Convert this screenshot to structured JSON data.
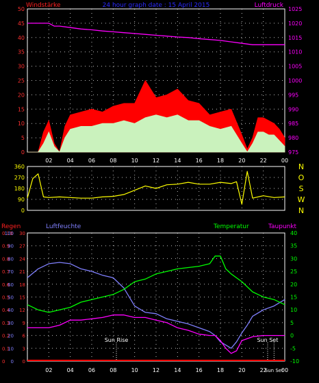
{
  "chart_data": [
    {
      "type": "line",
      "title": "24 hour graph date : 15 April 2015",
      "left_label": "Windstärke",
      "right_label": "Luftdruck",
      "y_ticks": [
        "0",
        "5",
        "10",
        "15",
        "20",
        "25",
        "30",
        "35",
        "40",
        "45",
        "50"
      ],
      "y_ticks_right": [
        "975",
        "980",
        "985",
        "990",
        "995",
        "1000",
        "1005",
        "1010",
        "1015",
        "1020",
        "1025"
      ],
      "x_ticks": [
        "02",
        "04",
        "06",
        "08",
        "10",
        "12",
        "14",
        "16",
        "18",
        "20",
        "22",
        "00"
      ],
      "ylim": [
        0,
        50
      ],
      "ylim_right": [
        975,
        1025
      ],
      "grid": true,
      "series": [
        {
          "color": "#ff0000",
          "x": [
            0,
            1,
            1.5,
            2,
            2.5,
            3,
            3.5,
            4,
            5,
            6,
            7,
            8,
            9,
            10,
            11,
            12,
            13,
            14,
            15,
            16,
            17,
            18,
            19,
            20,
            20.5,
            21,
            21.5,
            22,
            22.5,
            23,
            23.5,
            24
          ],
          "values": [
            0,
            0,
            7,
            11,
            3,
            0,
            9,
            13,
            14,
            15,
            14,
            16,
            17,
            17,
            25,
            19,
            20,
            22,
            18,
            17,
            13,
            14,
            15,
            6,
            1,
            5,
            12,
            12,
            11,
            10,
            8,
            5
          ]
        },
        {
          "color": "#c8ffc8",
          "x": [
            0,
            1,
            1.5,
            2,
            2.5,
            3,
            3.5,
            4,
            5,
            6,
            7,
            8,
            9,
            10,
            11,
            12,
            13,
            14,
            15,
            16,
            17,
            18,
            19,
            20,
            20.5,
            21,
            21.5,
            22,
            22.5,
            23,
            23.5,
            24
          ],
          "values": [
            0,
            0,
            3,
            7,
            2,
            0,
            5,
            8,
            9,
            9,
            10,
            10,
            11,
            10,
            12,
            13,
            12,
            13,
            11,
            11,
            9,
            8,
            9,
            3,
            0,
            3,
            7,
            7,
            6,
            6,
            4,
            2
          ]
        },
        {
          "color": "#ff00ff",
          "axis": "right",
          "x": [
            0,
            2,
            2.5,
            3,
            4,
            5,
            6,
            7,
            8,
            9,
            10,
            11,
            12,
            13,
            14,
            15,
            16,
            17,
            18,
            19,
            20,
            21,
            22,
            23,
            24
          ],
          "values": [
            1020,
            1020,
            1019,
            1019,
            1018.5,
            1018,
            1017.7,
            1017.3,
            1017,
            1016.7,
            1016.4,
            1016.1,
            1015.8,
            1015.5,
            1015.2,
            1015,
            1014.6,
            1014.3,
            1014,
            1013.5,
            1013,
            1012.5,
            1012.5,
            1012.5,
            1012.5
          ]
        }
      ]
    },
    {
      "type": "line",
      "left_ticks": [
        "0",
        "90",
        "180",
        "270",
        "360"
      ],
      "right_labels": [
        "N",
        "W",
        "S",
        "O",
        "N"
      ],
      "ylim": [
        0,
        360
      ],
      "grid": true,
      "series": [
        {
          "color": "#ffff00",
          "x": [
            0,
            0.5,
            1,
            1.5,
            2,
            3,
            4,
            5,
            6,
            7,
            8,
            9,
            10,
            11,
            12,
            13,
            14,
            15,
            16,
            17,
            18,
            19,
            19.5,
            20,
            20.5,
            21,
            22,
            23,
            24
          ],
          "values": [
            100,
            260,
            300,
            110,
            105,
            110,
            105,
            100,
            100,
            110,
            115,
            130,
            165,
            200,
            180,
            210,
            215,
            230,
            215,
            215,
            230,
            220,
            235,
            50,
            320,
            100,
            120,
            105,
            110
          ]
        }
      ]
    },
    {
      "type": "line",
      "labels": {
        "rain": "Regen",
        "humidity": "Luftfeuchte",
        "temperature": "Temperatur",
        "dewpoint": "Taupunkt"
      },
      "rain_ticks": [
        "0",
        "0.1",
        "0.2",
        "0.3",
        "0.4",
        "0.5",
        "0.6",
        "0.7",
        "0.8",
        "0.9",
        "0.10"
      ],
      "humidity_ticks": [
        "0",
        "10",
        "20",
        "30",
        "40",
        "50",
        "60",
        "70",
        "80",
        "90",
        "100"
      ],
      "left_inner_ticks": [
        "0",
        "3",
        "6",
        "9",
        "12",
        "15",
        "18",
        "21",
        "24",
        "27",
        "30"
      ],
      "temp_ticks": [
        "-10",
        "-5",
        "0",
        "5",
        "10",
        "15",
        "20",
        "25",
        "30",
        "35",
        "40"
      ],
      "x_ticks": [
        "02",
        "04",
        "06",
        "08",
        "10",
        "12",
        "14",
        "16",
        "18",
        "20",
        "22",
        "00"
      ],
      "annotations": [
        {
          "text": "Sun Rise",
          "x": 8.3
        },
        {
          "text": "Sun Set",
          "x": 22.4
        },
        {
          "text": "Sun Set",
          "x": 23
        }
      ],
      "ylim_temp": [
        -10,
        40
      ],
      "grid": true,
      "series": [
        {
          "key": "humidity",
          "color": "#8080ff",
          "x": [
            0,
            1,
            2,
            3,
            4,
            5,
            6,
            7,
            8,
            9,
            10,
            11,
            12,
            13,
            14,
            15,
            16,
            17,
            17.5,
            18,
            19,
            19.5,
            20,
            20.5,
            21,
            22,
            23,
            24
          ],
          "values": [
            65,
            72,
            76,
            77,
            76,
            72,
            70,
            67,
            65,
            57,
            43,
            38,
            37,
            33,
            31,
            29,
            26,
            23,
            20,
            15,
            10,
            15,
            22,
            28,
            35,
            40,
            43,
            48
          ]
        },
        {
          "key": "temperature",
          "color": "#00ff00",
          "x": [
            0,
            1,
            2,
            3,
            4,
            5,
            6,
            7,
            8,
            9,
            10,
            11,
            12,
            13,
            14,
            15,
            16,
            17,
            17.5,
            18,
            18.5,
            19,
            20,
            21,
            22,
            23,
            24
          ],
          "values": [
            12,
            10,
            9,
            10,
            11,
            13,
            14,
            15,
            16,
            18,
            21,
            22,
            24,
            25,
            26,
            26.5,
            27,
            28,
            31,
            31,
            26,
            24,
            21,
            17,
            15,
            14,
            12
          ]
        },
        {
          "key": "dewpoint",
          "color": "#ff00ff",
          "x": [
            0,
            1,
            2,
            3,
            4,
            5,
            6,
            7,
            8,
            9,
            10,
            11,
            12,
            13,
            14,
            15,
            16,
            17,
            17.5,
            18,
            18.5,
            19,
            19.5,
            20,
            21,
            22,
            23,
            24
          ],
          "values": [
            3,
            3,
            3,
            4,
            6,
            6,
            6.5,
            7,
            8,
            8,
            7,
            7,
            6,
            5,
            3,
            2,
            0.5,
            0,
            0,
            -2,
            -5,
            -7,
            -6,
            -2,
            -0.5,
            0,
            0,
            0
          ]
        },
        {
          "key": "rain",
          "color": "#ff0000",
          "x": [
            0,
            24
          ],
          "values": [
            0,
            0
          ]
        }
      ]
    }
  ]
}
